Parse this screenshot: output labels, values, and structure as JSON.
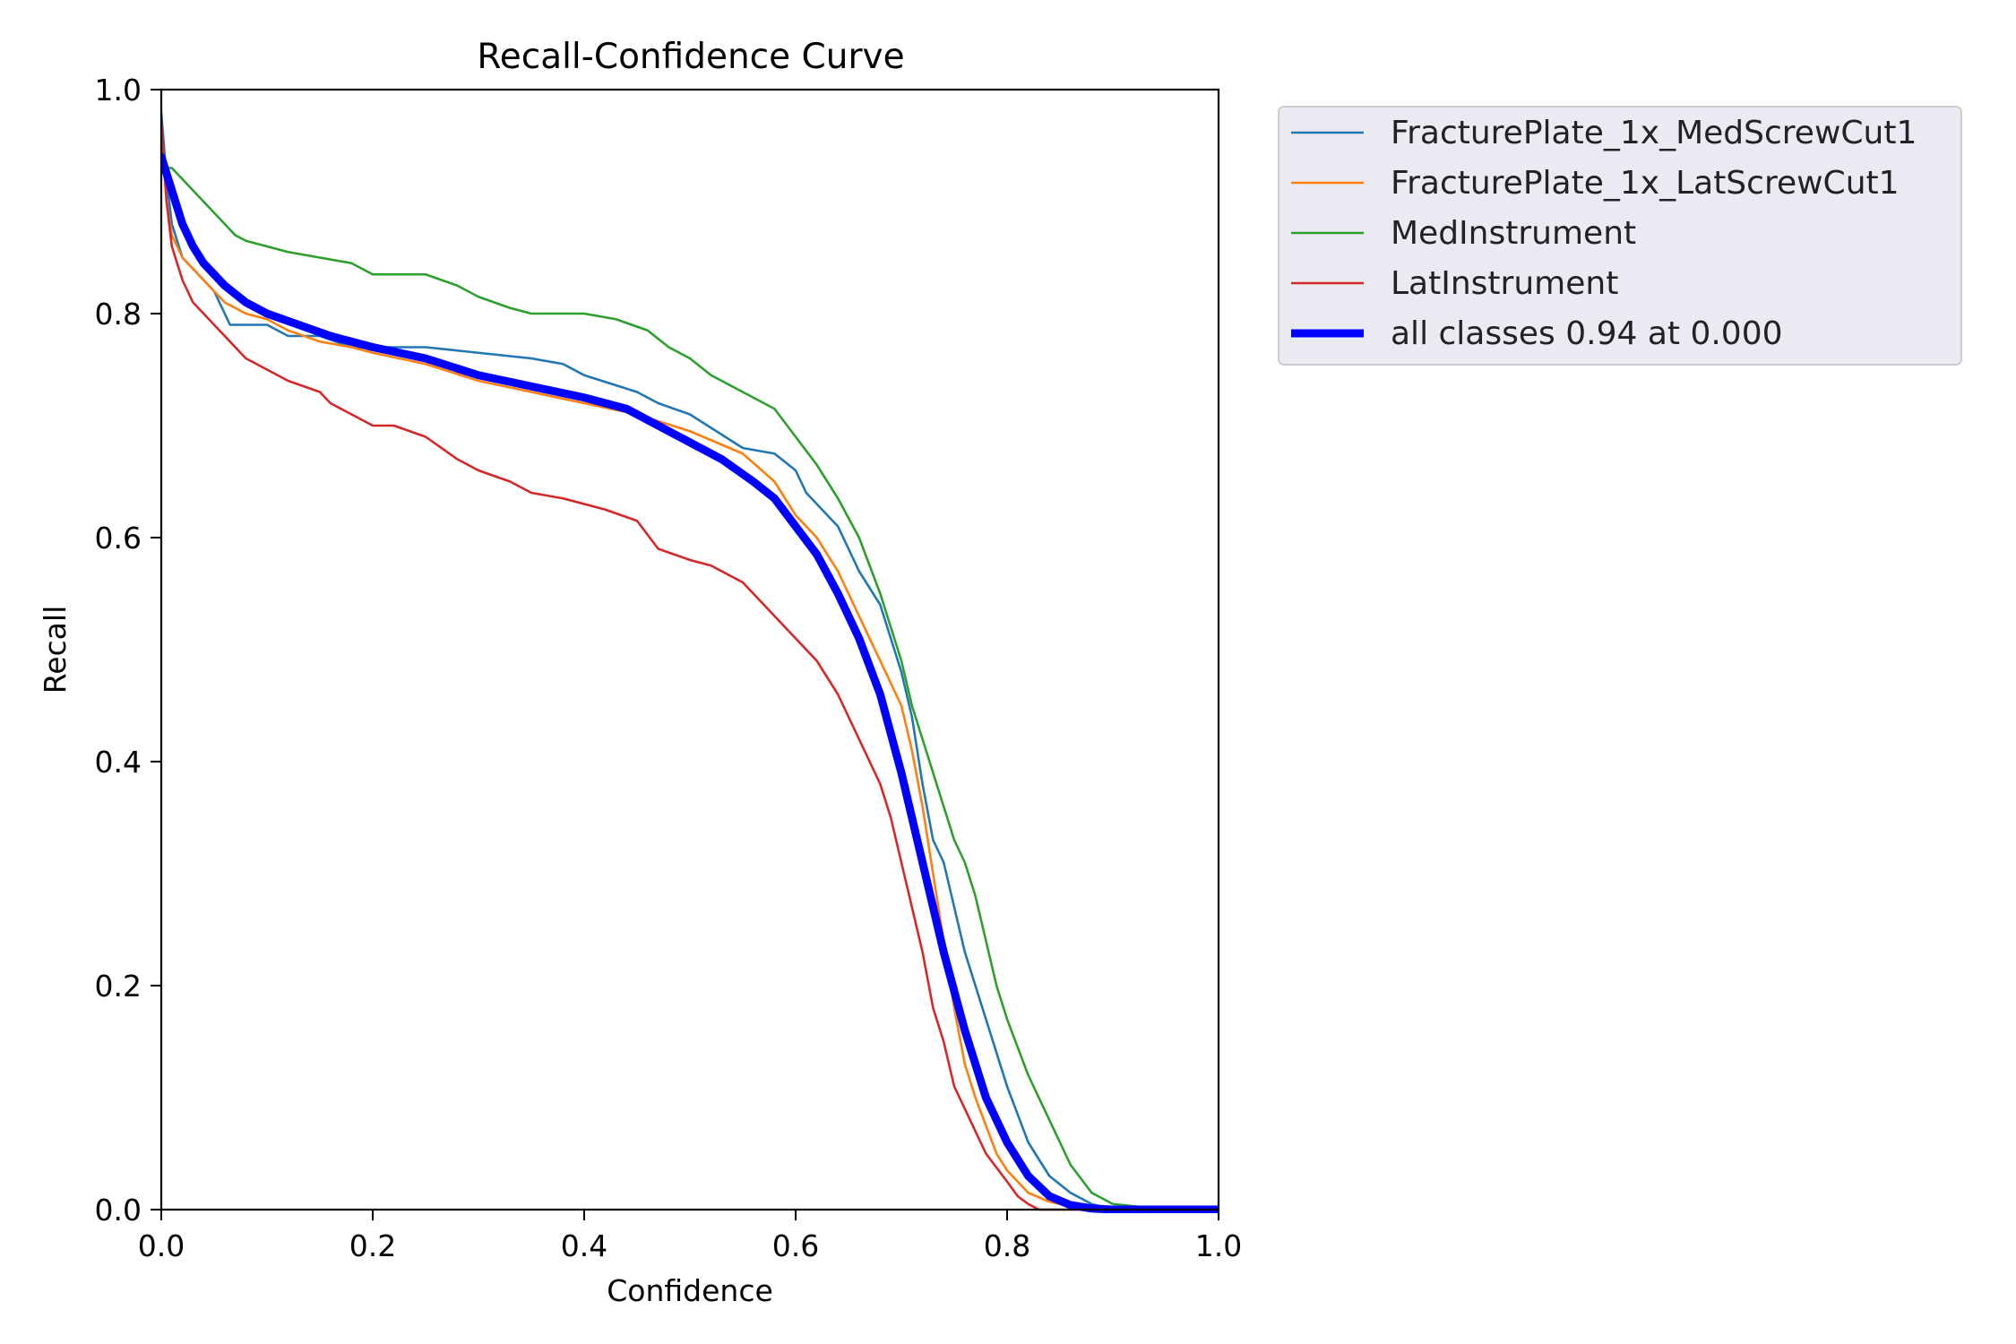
{
  "chart_data": {
    "type": "line",
    "title": "Recall-Confidence Curve",
    "xlabel": "Confidence",
    "ylabel": "Recall",
    "xlim": [
      0.0,
      1.0
    ],
    "ylim": [
      0.0,
      1.0
    ],
    "xticks": [
      "0.0",
      "0.2",
      "0.4",
      "0.6",
      "0.8",
      "1.0"
    ],
    "yticks": [
      "0.0",
      "0.2",
      "0.4",
      "0.6",
      "0.8",
      "1.0"
    ],
    "grid": false,
    "legend_position": "outside-top-right",
    "series": [
      {
        "name": "FracturePlate_1x_MedScrewCut1",
        "color": "#1f77b4",
        "x": [
          0.0,
          0.005,
          0.01,
          0.02,
          0.03,
          0.04,
          0.05,
          0.06,
          0.065,
          0.08,
          0.1,
          0.12,
          0.15,
          0.18,
          0.2,
          0.25,
          0.3,
          0.35,
          0.38,
          0.4,
          0.45,
          0.47,
          0.5,
          0.55,
          0.58,
          0.6,
          0.61,
          0.62,
          0.64,
          0.66,
          0.68,
          0.7,
          0.71,
          0.72,
          0.73,
          0.74,
          0.75,
          0.76,
          0.77,
          0.78,
          0.8,
          0.82,
          0.84,
          0.86,
          0.88,
          0.9,
          0.95,
          1.0
        ],
        "y": [
          0.98,
          0.92,
          0.88,
          0.85,
          0.84,
          0.83,
          0.82,
          0.8,
          0.79,
          0.79,
          0.79,
          0.78,
          0.78,
          0.77,
          0.77,
          0.77,
          0.765,
          0.76,
          0.755,
          0.745,
          0.73,
          0.72,
          0.71,
          0.68,
          0.675,
          0.66,
          0.64,
          0.63,
          0.61,
          0.57,
          0.54,
          0.48,
          0.44,
          0.38,
          0.33,
          0.31,
          0.27,
          0.23,
          0.2,
          0.17,
          0.11,
          0.06,
          0.03,
          0.015,
          0.005,
          0.0,
          0.0,
          0.0
        ]
      },
      {
        "name": "FracturePlate_1x_LatScrewCut1",
        "color": "#ff7f0e",
        "x": [
          0.0,
          0.005,
          0.01,
          0.02,
          0.03,
          0.04,
          0.05,
          0.06,
          0.08,
          0.1,
          0.12,
          0.15,
          0.18,
          0.2,
          0.25,
          0.3,
          0.35,
          0.4,
          0.45,
          0.5,
          0.55,
          0.58,
          0.6,
          0.62,
          0.64,
          0.66,
          0.68,
          0.7,
          0.71,
          0.72,
          0.73,
          0.74,
          0.75,
          0.76,
          0.77,
          0.78,
          0.79,
          0.8,
          0.82,
          0.84,
          0.86,
          0.87,
          0.88,
          0.9,
          0.95,
          1.0
        ],
        "y": [
          0.96,
          0.9,
          0.87,
          0.85,
          0.84,
          0.83,
          0.82,
          0.81,
          0.8,
          0.795,
          0.785,
          0.775,
          0.77,
          0.765,
          0.755,
          0.74,
          0.73,
          0.72,
          0.71,
          0.695,
          0.675,
          0.65,
          0.62,
          0.6,
          0.57,
          0.53,
          0.49,
          0.45,
          0.41,
          0.36,
          0.3,
          0.24,
          0.18,
          0.13,
          0.1,
          0.075,
          0.05,
          0.035,
          0.015,
          0.007,
          0.003,
          0.0,
          0.0,
          0.0,
          0.0,
          0.0
        ]
      },
      {
        "name": "MedInstrument",
        "color": "#2ca02c",
        "x": [
          0.0,
          0.005,
          0.01,
          0.02,
          0.03,
          0.04,
          0.05,
          0.06,
          0.07,
          0.08,
          0.1,
          0.12,
          0.15,
          0.18,
          0.2,
          0.25,
          0.28,
          0.3,
          0.33,
          0.35,
          0.4,
          0.43,
          0.46,
          0.48,
          0.5,
          0.52,
          0.55,
          0.58,
          0.6,
          0.62,
          0.64,
          0.66,
          0.67,
          0.68,
          0.69,
          0.7,
          0.71,
          0.72,
          0.73,
          0.74,
          0.75,
          0.76,
          0.77,
          0.78,
          0.79,
          0.8,
          0.82,
          0.84,
          0.86,
          0.88,
          0.9,
          0.95,
          1.0
        ],
        "y": [
          0.94,
          0.93,
          0.93,
          0.92,
          0.91,
          0.9,
          0.89,
          0.88,
          0.87,
          0.865,
          0.86,
          0.855,
          0.85,
          0.845,
          0.835,
          0.835,
          0.825,
          0.815,
          0.805,
          0.8,
          0.8,
          0.795,
          0.785,
          0.77,
          0.76,
          0.745,
          0.73,
          0.715,
          0.69,
          0.665,
          0.635,
          0.6,
          0.575,
          0.55,
          0.52,
          0.49,
          0.45,
          0.42,
          0.39,
          0.36,
          0.33,
          0.31,
          0.28,
          0.24,
          0.2,
          0.17,
          0.12,
          0.08,
          0.04,
          0.015,
          0.005,
          0.0,
          0.0
        ]
      },
      {
        "name": "LatInstrument",
        "color": "#d62728",
        "x": [
          0.0,
          0.005,
          0.01,
          0.02,
          0.03,
          0.04,
          0.05,
          0.06,
          0.07,
          0.08,
          0.09,
          0.1,
          0.12,
          0.15,
          0.16,
          0.2,
          0.22,
          0.25,
          0.28,
          0.3,
          0.33,
          0.35,
          0.38,
          0.4,
          0.42,
          0.45,
          0.47,
          0.5,
          0.52,
          0.55,
          0.57,
          0.58,
          0.6,
          0.62,
          0.64,
          0.66,
          0.68,
          0.69,
          0.7,
          0.71,
          0.72,
          0.73,
          0.74,
          0.75,
          0.76,
          0.78,
          0.8,
          0.81,
          0.82,
          0.83,
          0.85,
          0.9,
          0.95,
          1.0
        ],
        "y": [
          0.97,
          0.9,
          0.86,
          0.83,
          0.81,
          0.8,
          0.79,
          0.78,
          0.77,
          0.76,
          0.755,
          0.75,
          0.74,
          0.73,
          0.72,
          0.7,
          0.7,
          0.69,
          0.67,
          0.66,
          0.65,
          0.64,
          0.635,
          0.63,
          0.625,
          0.615,
          0.59,
          0.58,
          0.575,
          0.56,
          0.54,
          0.53,
          0.51,
          0.49,
          0.46,
          0.42,
          0.38,
          0.35,
          0.31,
          0.27,
          0.23,
          0.18,
          0.15,
          0.11,
          0.09,
          0.05,
          0.025,
          0.012,
          0.005,
          0.0,
          0.0,
          0.0,
          0.0,
          0.0
        ]
      },
      {
        "name": "all classes 0.94 at 0.000",
        "color": "#0000ff",
        "x": [
          0.0,
          0.01,
          0.02,
          0.03,
          0.04,
          0.05,
          0.06,
          0.08,
          0.1,
          0.13,
          0.16,
          0.2,
          0.25,
          0.3,
          0.35,
          0.4,
          0.44,
          0.47,
          0.5,
          0.53,
          0.56,
          0.58,
          0.6,
          0.62,
          0.64,
          0.66,
          0.68,
          0.7,
          0.72,
          0.74,
          0.76,
          0.78,
          0.8,
          0.82,
          0.84,
          0.86,
          0.88,
          0.9,
          0.95,
          1.0
        ],
        "y": [
          0.94,
          0.91,
          0.88,
          0.86,
          0.845,
          0.835,
          0.825,
          0.81,
          0.8,
          0.79,
          0.78,
          0.77,
          0.76,
          0.745,
          0.735,
          0.725,
          0.715,
          0.7,
          0.685,
          0.67,
          0.65,
          0.635,
          0.61,
          0.585,
          0.55,
          0.51,
          0.46,
          0.39,
          0.31,
          0.23,
          0.16,
          0.1,
          0.06,
          0.03,
          0.012,
          0.004,
          0.001,
          0.0,
          0.0,
          0.0
        ]
      }
    ]
  }
}
